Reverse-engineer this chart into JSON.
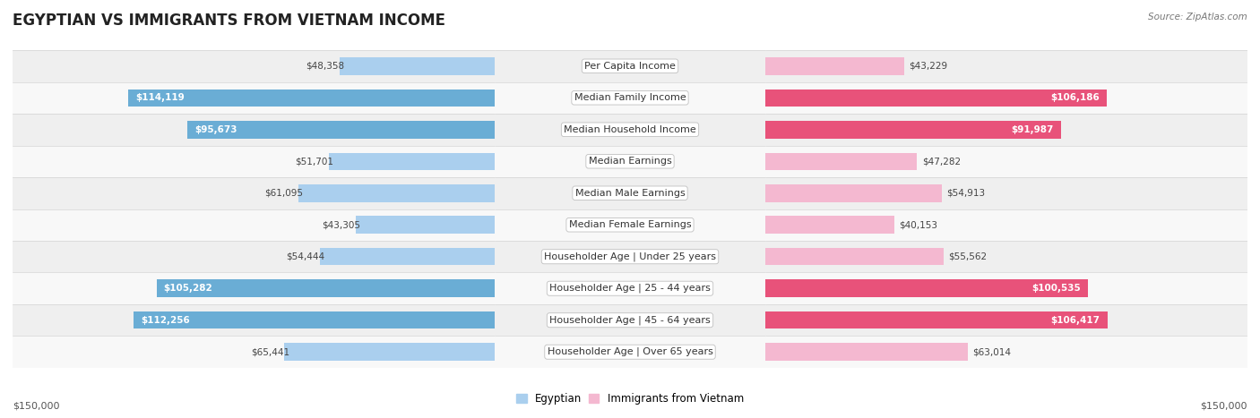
{
  "title": "EGYPTIAN VS IMMIGRANTS FROM VIETNAM INCOME",
  "source": "Source: ZipAtlas.com",
  "categories": [
    "Per Capita Income",
    "Median Family Income",
    "Median Household Income",
    "Median Earnings",
    "Median Male Earnings",
    "Median Female Earnings",
    "Householder Age | Under 25 years",
    "Householder Age | 25 - 44 years",
    "Householder Age | 45 - 64 years",
    "Householder Age | Over 65 years"
  ],
  "egyptian_values": [
    48358,
    114119,
    95673,
    51701,
    61095,
    43305,
    54444,
    105282,
    112256,
    65441
  ],
  "vietnam_values": [
    43229,
    106186,
    91987,
    47282,
    54913,
    40153,
    55562,
    100535,
    106417,
    63014
  ],
  "max_value": 150000,
  "high_threshold": 80000,
  "egyptian_color_low": "#aacfee",
  "egyptian_color_high": "#6aadd5",
  "vietnam_color_low": "#f4b8d0",
  "vietnam_color_high": "#e8527a",
  "legend_egyptian": "Egyptian",
  "legend_vietnam": "Immigrants from Vietnam",
  "axis_label_left": "$150,000",
  "axis_label_right": "$150,000",
  "title_fontsize": 12,
  "label_fontsize": 8,
  "value_fontsize": 7.5,
  "row_colors": [
    "#efefef",
    "#f8f8f8"
  ]
}
